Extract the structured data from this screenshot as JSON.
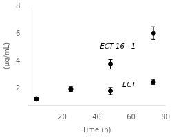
{
  "chart_data": {
    "type": "scatter",
    "xlabel": "Time (h)",
    "ylabel": "(μg/mL)",
    "series": [
      {
        "color": "#000000",
        "marker": "circle",
        "x": [
          5,
          25,
          48,
          73
        ],
        "values": [
          1.3,
          2.0,
          3.8,
          6.05
        ],
        "yerr": [
          0.1,
          0.15,
          0.35,
          0.45
        ]
      },
      {
        "color": "#000000",
        "marker": "circle",
        "x": [
          5,
          25,
          48,
          73
        ],
        "values": [
          1.25,
          1.95,
          1.85,
          2.5
        ],
        "yerr": [
          0.1,
          0.12,
          0.25,
          0.18
        ]
      }
    ],
    "annotations": [
      {
        "text": "ECT 16 - 1",
        "x": 42,
        "y": 4.9
      },
      {
        "text": "ECT",
        "x": 55,
        "y": 2.15
      }
    ],
    "xlim": [
      0,
      80
    ],
    "ylim": [
      0.8,
      8
    ],
    "xticks": [
      20,
      40,
      60,
      80
    ],
    "yticks": [
      2,
      4,
      6,
      8
    ],
    "grid": false
  }
}
